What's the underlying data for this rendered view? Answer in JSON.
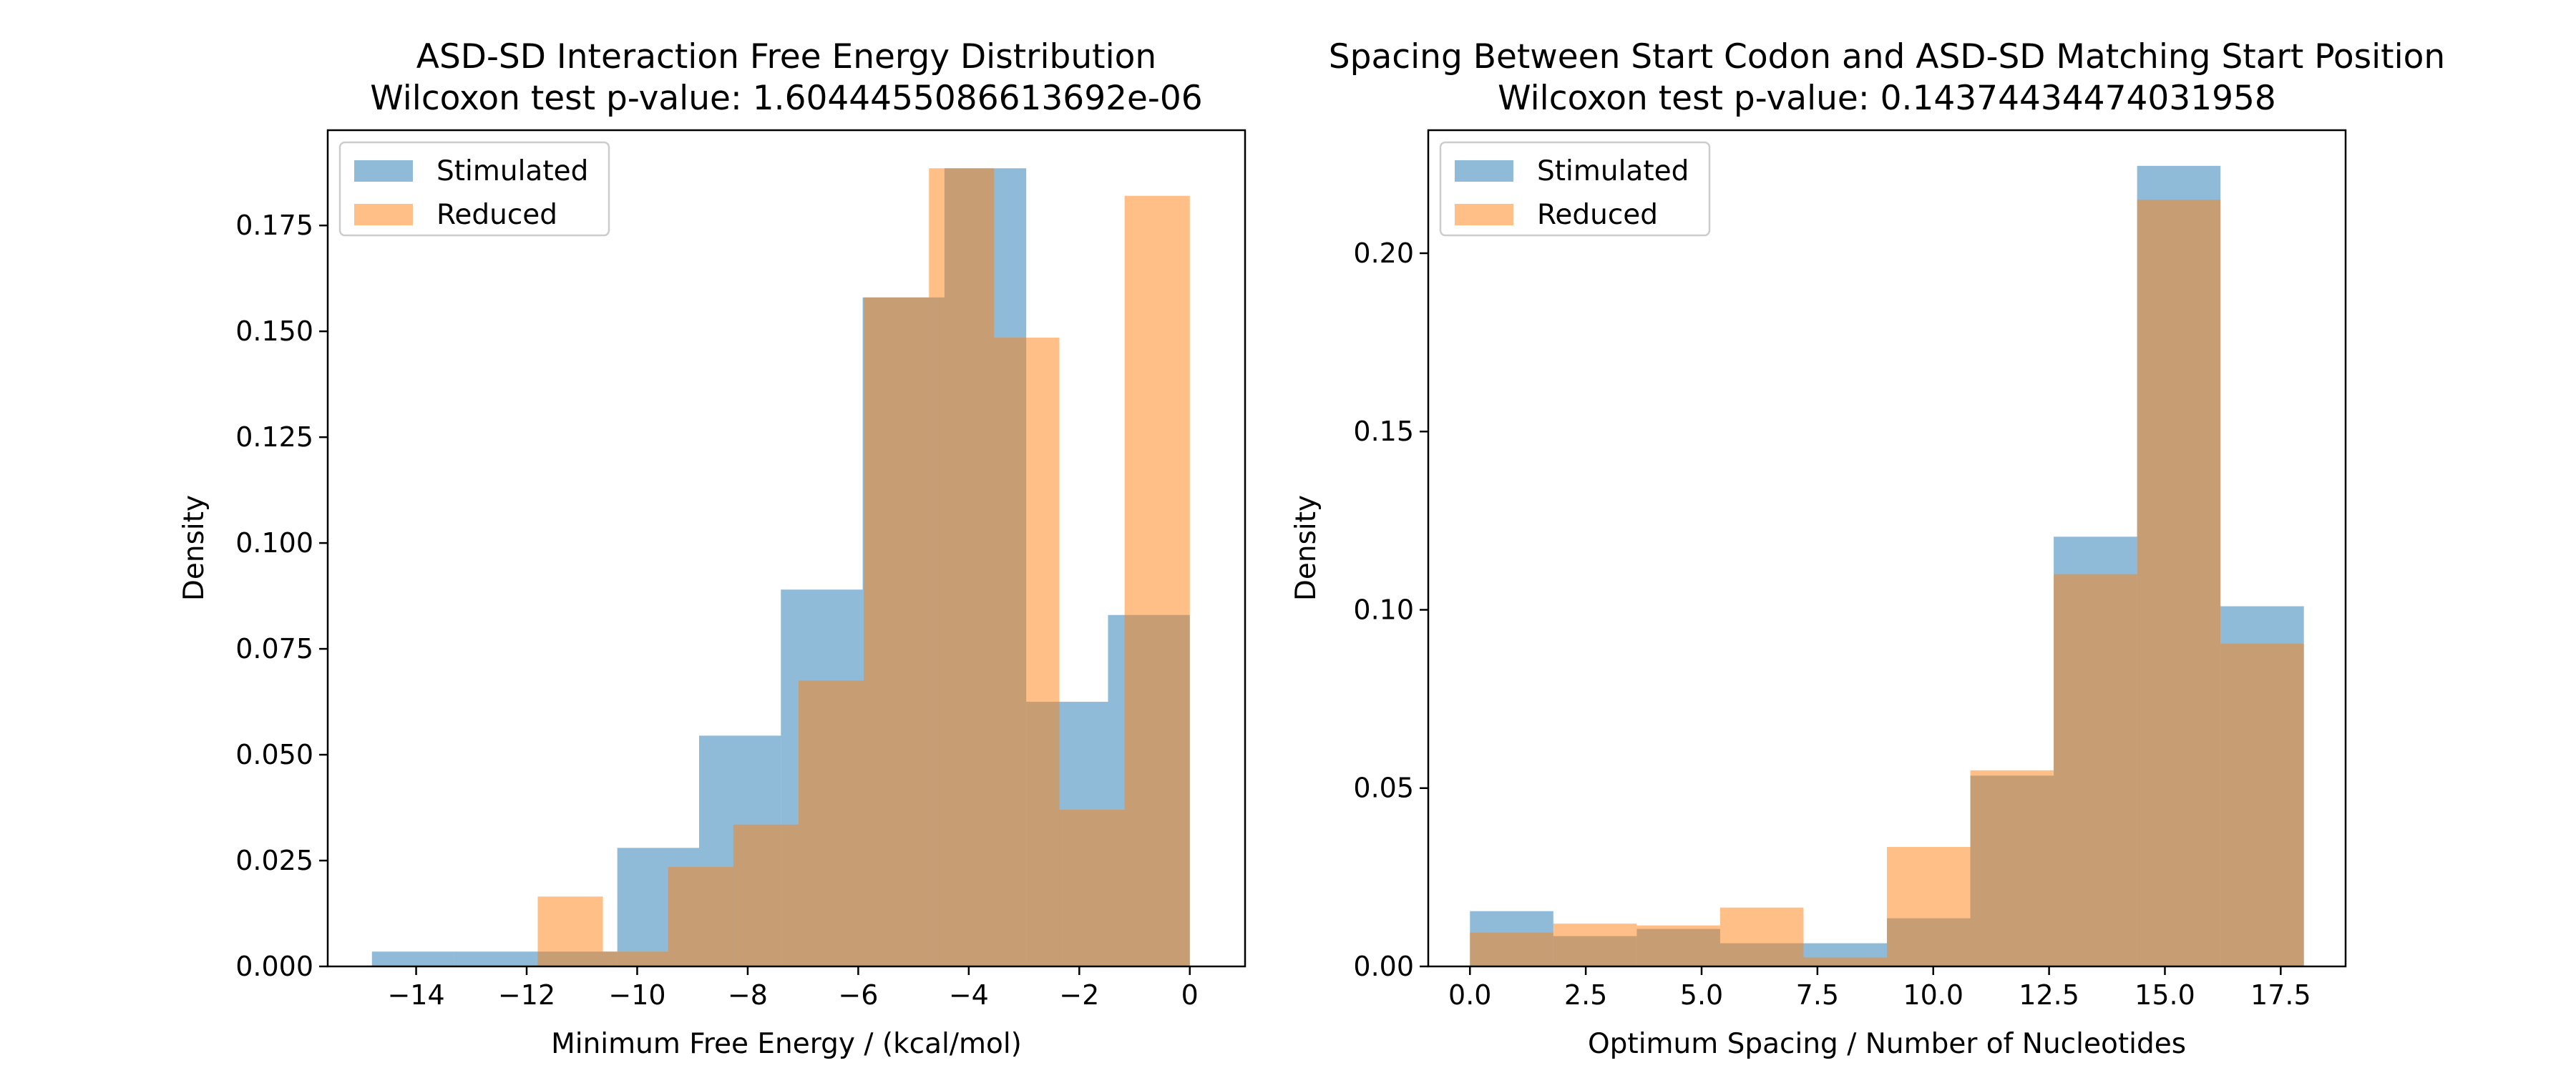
{
  "chart_data": [
    {
      "type": "histogram",
      "title": "ASD-SD Interaction Free Energy Distribution",
      "subtitle": "Wilcoxon test p-value: 1.6044455086613692e-06",
      "xlabel": "Minimum Free Energy / (kcal/mol)",
      "ylabel": "Density",
      "xlim": [
        -15.6,
        1.0
      ],
      "ylim": [
        0,
        0.1975
      ],
      "xticks": [
        -14,
        -12,
        -10,
        -8,
        -6,
        -4,
        -2,
        0
      ],
      "xtick_labels": [
        "−14",
        "−12",
        "−10",
        "−8",
        "−6",
        "−4",
        "−2",
        "0"
      ],
      "yticks": [
        0,
        0.025,
        0.05,
        0.075,
        0.1,
        0.125,
        0.15,
        0.175
      ],
      "ytick_labels": [
        "0.000",
        "0.025",
        "0.050",
        "0.075",
        "0.100",
        "0.125",
        "0.150",
        "0.175"
      ],
      "legend_position": "top-left",
      "series": [
        {
          "name": "Stimulated",
          "color": "#1f77b4",
          "opacity": 0.5,
          "bin_edges": [
            -14.8,
            -13.32,
            -11.84,
            -10.36,
            -8.88,
            -7.4,
            -5.92,
            -4.44,
            -2.96,
            -1.48,
            0.0
          ],
          "values": [
            0.0035,
            0.0035,
            0.0035,
            0.028,
            0.0545,
            0.089,
            0.158,
            0.1885,
            0.0625,
            0.083
          ]
        },
        {
          "name": "Reduced",
          "color": "#ff7f0e",
          "opacity": 0.5,
          "bin_edges": [
            -11.8,
            -10.62,
            -9.44,
            -8.26,
            -7.08,
            -5.9,
            -4.72,
            -3.54,
            -2.36,
            -1.18,
            0.0
          ],
          "values": [
            0.0165,
            0.0035,
            0.0235,
            0.0335,
            0.0675,
            0.158,
            0.1885,
            0.1485,
            0.037,
            0.182
          ]
        }
      ]
    },
    {
      "type": "histogram",
      "title": "Spacing Between Start Codon and ASD-SD Matching Start Position",
      "subtitle": "Wilcoxon test p-value: 0.14374434474031958",
      "xlabel": "Optimum Spacing / Number of Nucleotides",
      "ylabel": "Density",
      "xlim": [
        -0.9,
        18.9
      ],
      "ylim": [
        0,
        0.2345
      ],
      "xticks": [
        0,
        2.5,
        5,
        7.5,
        10,
        12.5,
        15,
        17.5
      ],
      "xtick_labels": [
        "0.0",
        "2.5",
        "5.0",
        "7.5",
        "10.0",
        "12.5",
        "15.0",
        "17.5"
      ],
      "yticks": [
        0,
        0.05,
        0.1,
        0.15,
        0.2
      ],
      "ytick_labels": [
        "0.00",
        "0.05",
        "0.10",
        "0.15",
        "0.20"
      ],
      "legend_position": "top-left",
      "series": [
        {
          "name": "Stimulated",
          "color": "#1f77b4",
          "opacity": 0.5,
          "bin_edges": [
            0,
            1.8,
            3.6,
            5.4,
            7.2,
            9.0,
            10.8,
            12.6,
            14.4,
            16.2,
            18.0
          ],
          "values": [
            0.0155,
            0.0085,
            0.0105,
            0.0065,
            0.0065,
            0.0135,
            0.0535,
            0.1205,
            0.2245,
            0.101
          ]
        },
        {
          "name": "Reduced",
          "color": "#ff7f0e",
          "opacity": 0.5,
          "bin_edges": [
            0,
            1.8,
            3.6,
            5.4,
            7.2,
            9.0,
            10.8,
            12.6,
            14.4,
            16.2,
            18.0
          ],
          "values": [
            0.0095,
            0.012,
            0.0115,
            0.0165,
            0.0025,
            0.0335,
            0.055,
            0.11,
            0.215,
            0.0905
          ]
        }
      ]
    }
  ]
}
